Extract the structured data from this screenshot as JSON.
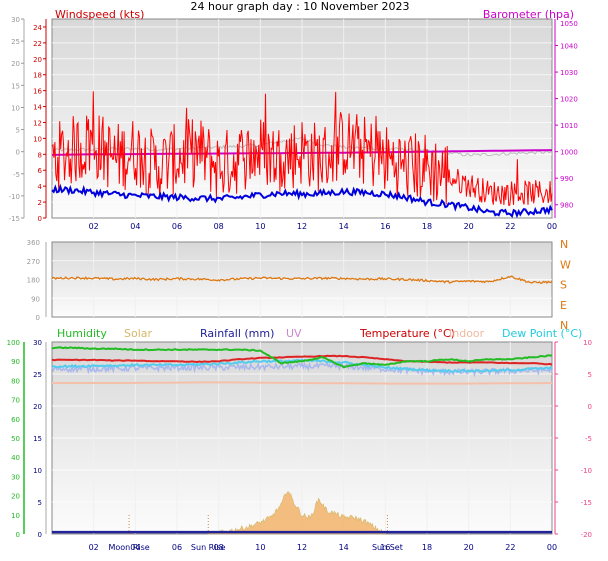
{
  "title": "24 hour graph day : 10 November 2023",
  "chart_data": [
    {
      "type": "line",
      "name": "wind-barometer",
      "labels": {
        "left": "Windspeed (kts)",
        "right": "Barometer (hpa)"
      },
      "x_ticks": [
        "02",
        "04",
        "06",
        "08",
        "10",
        "12",
        "14",
        "16",
        "18",
        "20",
        "22",
        "00"
      ],
      "x_range_hours": [
        0,
        24
      ],
      "y_axes": {
        "windspeed_kts": {
          "range": [
            0,
            25
          ],
          "ticks": [
            0,
            2,
            4,
            6,
            8,
            10,
            12,
            14,
            16,
            18,
            20,
            22,
            24
          ]
        },
        "temperature_c_outer": {
          "range": [
            -15,
            30
          ],
          "ticks": [
            -15,
            -10,
            -5,
            0,
            5,
            10,
            15,
            20,
            25,
            30
          ]
        },
        "barometer_hpa": {
          "range": [
            975,
            1050
          ],
          "ticks": [
            980,
            990,
            1000,
            1010,
            1020,
            1030,
            1040,
            1050
          ],
          "top_label": "1050"
        }
      },
      "colors": {
        "gust": "#ff0000",
        "average": "#0000dd",
        "barometer": "#cc00cc",
        "grey_series": "#bbbbbb",
        "left_axis": "#cc0000",
        "right_axis": "#cc00cc"
      },
      "series": [
        {
          "key": "grey",
          "x": [
            0,
            1,
            2,
            3,
            4,
            5,
            6,
            7,
            8,
            9,
            10,
            11,
            12,
            13,
            14,
            15,
            16,
            17,
            18,
            19,
            20,
            21,
            22,
            23,
            24
          ],
          "y": [
            8.5,
            8.6,
            8.6,
            8.7,
            8.7,
            8.6,
            8.7,
            8.8,
            8.9,
            9.0,
            9.2,
            9.6,
            10.0,
            9.2,
            8.9,
            8.8,
            8.7,
            8.6,
            8.4,
            8.2,
            7.9,
            8.0,
            8.1,
            8.2,
            8.3
          ]
        },
        {
          "key": "barometer",
          "name": "Barometer (hpa)",
          "x": [
            0,
            2,
            4,
            6,
            8,
            10,
            12,
            14,
            16,
            18,
            20,
            22,
            24
          ],
          "y": [
            998.8,
            999.0,
            999.1,
            999.2,
            999.3,
            999.4,
            999.5,
            999.6,
            999.8,
            1000.0,
            1000.2,
            1000.4,
            1000.6
          ]
        },
        {
          "key": "gust",
          "name": "Windspeed (kts)",
          "x": [
            0,
            1,
            2,
            3,
            4,
            5,
            6,
            7,
            8,
            9,
            10,
            11,
            12,
            13,
            14,
            15,
            16,
            17,
            18,
            19,
            20,
            21,
            22,
            23,
            24
          ],
          "y": [
            7,
            8,
            9,
            7,
            8,
            6,
            7,
            8,
            6,
            7,
            8,
            7,
            8,
            7,
            9,
            8,
            7,
            6,
            6,
            5,
            4,
            3,
            3,
            3,
            3
          ]
        },
        {
          "key": "average",
          "name": "Windspeed (kts)",
          "x": [
            0,
            1,
            2,
            3,
            4,
            5,
            6,
            7,
            8,
            9,
            10,
            11,
            12,
            13,
            14,
            15,
            16,
            17,
            18,
            19,
            20,
            21,
            22,
            23,
            24
          ],
          "y": [
            3.6,
            3.5,
            3.2,
            3.0,
            2.8,
            2.7,
            2.6,
            2.5,
            2.4,
            2.6,
            2.9,
            3.1,
            3.0,
            3.1,
            3.3,
            3.2,
            3.0,
            2.6,
            2.0,
            1.7,
            1.3,
            0.7,
            0.6,
            0.8,
            1.1
          ]
        }
      ]
    },
    {
      "type": "line",
      "name": "wind-direction",
      "y_axis": {
        "range": [
          0,
          360
        ],
        "ticks": [
          0,
          90,
          180,
          270,
          360
        ]
      },
      "compass": [
        "N",
        "W",
        "S",
        "E",
        "N"
      ],
      "colors": {
        "direction": "#dd7711",
        "compass": "#dd7711"
      },
      "series": [
        {
          "key": "direction",
          "x": [
            0,
            1,
            2,
            3,
            4,
            5,
            6,
            7,
            8,
            9,
            10,
            11,
            12,
            13,
            14,
            15,
            16,
            17,
            18,
            19,
            20,
            21,
            22,
            23,
            24
          ],
          "y": [
            185,
            188,
            186,
            182,
            185,
            180,
            184,
            182,
            178,
            183,
            187,
            185,
            184,
            186,
            185,
            182,
            183,
            180,
            175,
            168,
            172,
            170,
            195,
            165,
            168
          ]
        }
      ]
    },
    {
      "type": "line",
      "name": "weather",
      "legend": [
        {
          "label": "Humidity",
          "color": "#22bb22"
        },
        {
          "label": "Solar",
          "color": "#d4b86a"
        },
        {
          "label": "Rainfall (mm)",
          "color": "#222299"
        },
        {
          "label": "UV",
          "color": "#cc88cc"
        },
        {
          "label": "Temperature (°C)",
          "color": "#cc0000"
        },
        {
          "label": "Indoor",
          "color": "#f2b8a0"
        },
        {
          "label": "Dew Point (°C)",
          "color": "#22ccdd"
        }
      ],
      "x_ticks": [
        "02",
        "04",
        "06",
        "08",
        "10",
        "12",
        "14",
        "16",
        "18",
        "20",
        "22",
        "00"
      ],
      "x_range_hours": [
        0,
        24
      ],
      "y_axes": {
        "humidity_pct": {
          "range": [
            0,
            100
          ],
          "ticks": [
            0,
            10,
            20,
            30,
            40,
            50,
            60,
            70,
            80,
            90,
            100
          ]
        },
        "rainfall_mm": {
          "range": [
            0,
            30
          ],
          "ticks": [
            0,
            5,
            10,
            15,
            20,
            25,
            30
          ]
        },
        "temperature_c": {
          "range": [
            -20,
            10
          ],
          "ticks": [
            -20,
            -15,
            -10,
            -5,
            0,
            5,
            10
          ]
        }
      },
      "markers": [
        {
          "label": "Moon Rise",
          "x": 3.7
        },
        {
          "label": "Sun Rise",
          "x": 7.5
        },
        {
          "label": "Sun Set",
          "x": 16.1
        }
      ],
      "series": [
        {
          "key": "humidity",
          "name": "Humidity",
          "x": [
            0,
            1,
            2,
            3,
            4,
            5,
            6,
            7,
            8,
            9,
            10,
            11,
            12,
            13,
            14,
            15,
            16,
            17,
            18,
            19,
            20,
            21,
            22,
            23,
            24
          ],
          "y": [
            97,
            97,
            96.5,
            96.5,
            96,
            96,
            96,
            96,
            96,
            96,
            95.5,
            89,
            90,
            92,
            87,
            89,
            88,
            90,
            90,
            91,
            90,
            91,
            91,
            92,
            93
          ]
        },
        {
          "key": "indoor",
          "name": "Indoor",
          "x": [
            0,
            4,
            8,
            12,
            16,
            20,
            24
          ],
          "y": [
            3.6,
            3.6,
            3.7,
            3.6,
            3.5,
            3.5,
            3.6
          ]
        },
        {
          "key": "temperature",
          "name": "Temperature (°C)",
          "x": [
            0,
            1,
            2,
            3,
            4,
            5,
            6,
            7,
            8,
            9,
            10,
            11,
            12,
            13,
            14,
            15,
            16,
            17,
            18,
            19,
            20,
            21,
            22,
            23,
            24
          ],
          "y": [
            7.2,
            7.2,
            7.2,
            7.1,
            7.1,
            7.0,
            7.0,
            6.9,
            7.0,
            7.3,
            7.5,
            7.6,
            7.7,
            7.8,
            7.8,
            7.6,
            7.3,
            7.0,
            6.9,
            6.8,
            6.8,
            6.8,
            6.7,
            6.7,
            6.5
          ]
        },
        {
          "key": "lightblue",
          "x": [
            0,
            2,
            4,
            6,
            8,
            10,
            12,
            14,
            16,
            18,
            20,
            22,
            24
          ],
          "y": [
            5.8,
            5.8,
            5.9,
            6.0,
            6.0,
            6.1,
            6.2,
            6.2,
            5.8,
            5.4,
            5.3,
            5.5,
            5.6
          ]
        },
        {
          "key": "dewpoint",
          "name": "Dew Point (°C)",
          "x": [
            0,
            1,
            2,
            3,
            4,
            5,
            6,
            7,
            8,
            9,
            10,
            11,
            12,
            13,
            14,
            15,
            16,
            17,
            18,
            19,
            20,
            21,
            22,
            23,
            24
          ],
          "y": [
            6.2,
            6.2,
            6.3,
            6.3,
            6.4,
            6.4,
            6.4,
            6.5,
            6.6,
            6.8,
            7.0,
            7.0,
            7.1,
            7.0,
            6.8,
            6.4,
            6.0,
            5.8,
            5.6,
            5.5,
            5.5,
            5.5,
            5.6,
            5.8,
            5.9
          ]
        },
        {
          "key": "solar",
          "name": "Solar",
          "x": [
            7.5,
            8,
            8.5,
            9,
            9.5,
            10,
            10.5,
            11,
            11.3,
            11.6,
            12,
            12.4,
            12.8,
            13.2,
            13.6,
            14,
            14.5,
            15,
            15.5,
            16
          ],
          "y": [
            0,
            0.2,
            0.5,
            0.8,
            1.2,
            1.8,
            2.6,
            4.5,
            7.0,
            5.0,
            3.0,
            2.5,
            5.5,
            3.6,
            3.2,
            2.6,
            2.6,
            2.0,
            1.0,
            0
          ]
        },
        {
          "key": "rainfall",
          "name": "Rainfall (mm)",
          "x": [
            0,
            24
          ],
          "y": [
            0.3,
            0.3
          ]
        }
      ]
    }
  ]
}
